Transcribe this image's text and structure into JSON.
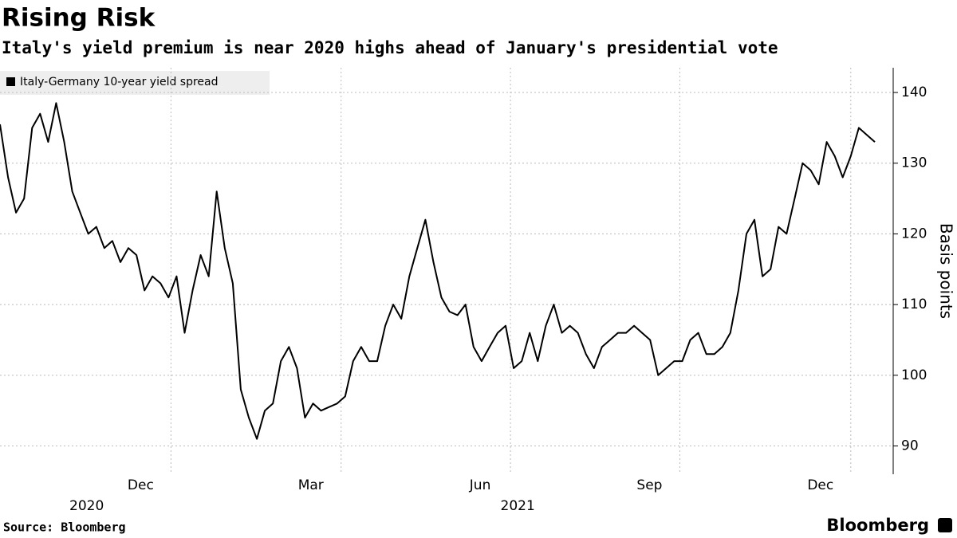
{
  "chart_data": {
    "type": "line",
    "title": "Rising Risk",
    "subtitle": "Italy's yield premium is near 2020 highs ahead of January's presidential vote",
    "y_label": "Basis points",
    "source": "Source: Bloomberg",
    "brand": "Bloomberg",
    "series": [
      {
        "name": "Italy-Germany 10-year yield spread",
        "color": "#000000",
        "values": [
          135.5,
          128,
          123,
          125,
          135,
          137,
          133,
          138.5,
          133,
          126,
          123,
          120,
          121,
          118,
          119,
          116,
          118,
          117,
          112,
          114,
          113,
          111,
          114,
          106,
          112,
          117,
          114,
          126,
          118,
          113,
          98,
          94,
          91,
          95,
          96,
          102,
          104,
          101,
          94,
          96,
          95,
          95.5,
          96,
          97,
          102,
          104,
          102,
          102,
          107,
          110,
          108,
          114,
          118,
          122,
          116,
          111,
          109,
          108.5,
          110,
          104,
          102,
          104,
          106,
          107,
          101,
          102,
          106,
          102,
          107,
          110,
          106,
          107,
          106,
          103,
          101,
          104,
          105,
          106,
          106,
          107,
          106,
          105,
          100,
          101,
          102,
          102,
          105,
          106,
          103,
          103,
          104,
          106,
          112,
          120,
          122,
          114,
          115,
          121,
          120,
          125,
          130,
          129,
          127,
          133,
          131,
          128,
          131,
          135,
          134,
          133
        ]
      }
    ],
    "xlim": [
      0,
      109
    ],
    "xticks": [
      {
        "value": 21.3,
        "label": "Dec"
      },
      {
        "value": 42.5,
        "label": "Mar"
      },
      {
        "value": 63.6,
        "label": "Jun"
      },
      {
        "value": 84.7,
        "label": "Sep"
      },
      {
        "value": 106,
        "label": "Dec"
      }
    ],
    "year_labels": [
      {
        "value": 10.8,
        "label": "2020"
      },
      {
        "value": 64.5,
        "label": "2021"
      }
    ],
    "ylim": [
      86,
      143.5
    ],
    "yticks": [
      90,
      100,
      110,
      120,
      130,
      140
    ],
    "grid": true
  }
}
